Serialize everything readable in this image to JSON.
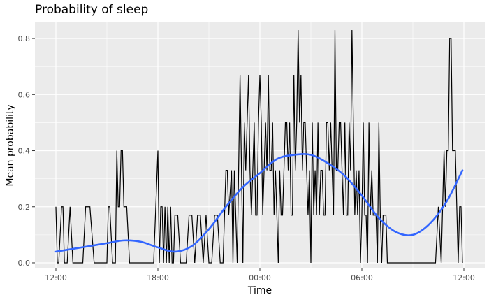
{
  "chart_data": {
    "type": "line",
    "title": "Probability of sleep",
    "xlabel": "Time",
    "ylabel": "Mean probability",
    "x_unit": "time of day, noon to next noon (24 h)",
    "xlim": [
      "12:00",
      "12:00"
    ],
    "ylim": [
      -0.02,
      0.86
    ],
    "x_ticks": [
      "12:00",
      "18:00",
      "00:00",
      "06:00",
      "12:00"
    ],
    "y_ticks": [
      "0.0",
      "0.2",
      "0.4",
      "0.6",
      "0.8"
    ],
    "grid": true,
    "background": "#ebebeb",
    "series": [
      {
        "style": "raw",
        "color": "#000000",
        "x": [
          "12:00",
          "12:05",
          "12:10",
          "12:20",
          "12:25",
          "12:30",
          "12:40",
          "12:50",
          "13:00",
          "13:10",
          "13:20",
          "13:30",
          "13:35",
          "13:45",
          "14:00",
          "14:15",
          "14:30",
          "14:45",
          "15:00",
          "15:05",
          "15:10",
          "15:20",
          "15:30",
          "15:35",
          "15:40",
          "15:45",
          "15:50",
          "15:55",
          "16:00",
          "16:10",
          "16:20",
          "16:30",
          "16:40",
          "17:00",
          "17:15",
          "17:30",
          "17:45",
          "18:00",
          "18:05",
          "18:10",
          "18:15",
          "18:20",
          "18:25",
          "18:30",
          "18:35",
          "18:40",
          "18:45",
          "18:50",
          "18:55",
          "19:00",
          "19:10",
          "19:20",
          "19:30",
          "19:40",
          "19:50",
          "20:00",
          "20:10",
          "20:20",
          "20:30",
          "20:40",
          "20:50",
          "21:00",
          "21:10",
          "21:20",
          "21:30",
          "21:40",
          "21:50",
          "22:00",
          "22:05",
          "22:10",
          "22:20",
          "22:25",
          "22:30",
          "22:40",
          "22:45",
          "22:50",
          "23:00",
          "23:05",
          "23:10",
          "23:15",
          "23:20",
          "23:25",
          "23:30",
          "23:35",
          "23:40",
          "23:45",
          "23:50",
          "23:55",
          "00:00",
          "00:05",
          "00:10",
          "00:15",
          "00:20",
          "00:25",
          "00:30",
          "00:35",
          "00:40",
          "00:45",
          "00:50",
          "00:55",
          "01:00",
          "01:05",
          "01:10",
          "01:15",
          "01:20",
          "01:25",
          "01:30",
          "01:35",
          "01:40",
          "01:45",
          "01:50",
          "01:55",
          "02:00",
          "02:05",
          "02:10",
          "02:15",
          "02:20",
          "02:25",
          "02:30",
          "02:35",
          "02:40",
          "02:45",
          "02:50",
          "02:55",
          "03:00",
          "03:05",
          "03:10",
          "03:15",
          "03:20",
          "03:25",
          "03:30",
          "03:35",
          "03:40",
          "03:45",
          "03:50",
          "03:55",
          "04:00",
          "04:05",
          "04:10",
          "04:15",
          "04:20",
          "04:25",
          "04:30",
          "04:35",
          "04:40",
          "04:45",
          "04:50",
          "04:55",
          "05:00",
          "05:05",
          "05:10",
          "05:15",
          "05:20",
          "05:25",
          "05:30",
          "05:35",
          "05:40",
          "05:45",
          "05:50",
          "05:55",
          "06:00",
          "06:05",
          "06:10",
          "06:15",
          "06:20",
          "06:25",
          "06:30",
          "06:35",
          "06:40",
          "06:45",
          "06:50",
          "06:55",
          "07:00",
          "07:05",
          "07:10",
          "07:15",
          "07:20",
          "07:25",
          "07:30",
          "07:35",
          "07:40",
          "07:45",
          "07:50",
          "07:55",
          "08:00",
          "08:10",
          "08:20",
          "08:30",
          "08:40",
          "08:50",
          "09:00",
          "09:10",
          "09:20",
          "09:30",
          "09:40",
          "09:50",
          "10:00",
          "10:10",
          "10:20",
          "10:30",
          "10:40",
          "10:50",
          "10:55",
          "11:00",
          "11:05",
          "11:10",
          "11:15",
          "11:20",
          "11:25",
          "11:30",
          "11:35",
          "11:40",
          "11:45",
          "11:50",
          "11:55"
        ],
        "values": [
          0.2,
          0,
          0,
          0.2,
          0.2,
          0,
          0,
          0.2,
          0,
          0,
          0,
          0,
          0,
          0.2,
          0.2,
          0,
          0,
          0,
          0,
          0.2,
          0.2,
          0,
          0,
          0.4,
          0.2,
          0.2,
          0.4,
          0.4,
          0.2,
          0.2,
          0,
          0,
          0,
          0,
          0,
          0,
          0,
          0.4,
          0,
          0.2,
          0.2,
          0,
          0.2,
          0,
          0.2,
          0,
          0.2,
          0,
          0,
          0.17,
          0.17,
          0,
          0,
          0,
          0.17,
          0.17,
          0,
          0.17,
          0.17,
          0,
          0.17,
          0,
          0,
          0.17,
          0.17,
          0,
          0,
          0.33,
          0.33,
          0.17,
          0.33,
          0,
          0.33,
          0,
          0.33,
          0.67,
          0,
          0.5,
          0.33,
          0.5,
          0.67,
          0.33,
          0.17,
          0.33,
          0.5,
          0.17,
          0.17,
          0.5,
          0.67,
          0.5,
          0.17,
          0.33,
          0.5,
          0.33,
          0.67,
          0.33,
          0.33,
          0.5,
          0.17,
          0.33,
          0.17,
          0,
          0.33,
          0.17,
          0.17,
          0.33,
          0.5,
          0.5,
          0.33,
          0.5,
          0.17,
          0.17,
          0.67,
          0.33,
          0.5,
          0.83,
          0.5,
          0.67,
          0.33,
          0.5,
          0.5,
          0.33,
          0.17,
          0.33,
          0,
          0.5,
          0.17,
          0.33,
          0.17,
          0.5,
          0.17,
          0.33,
          0.33,
          0.17,
          0.17,
          0.5,
          0.5,
          0.33,
          0.5,
          0.33,
          0.17,
          0.83,
          0.33,
          0.33,
          0.5,
          0.5,
          0.33,
          0.17,
          0.5,
          0.17,
          0.17,
          0.5,
          0.33,
          0.83,
          0.5,
          0.17,
          0.33,
          0.17,
          0.33,
          0,
          0.17,
          0.5,
          0.17,
          0.17,
          0,
          0.5,
          0.17,
          0.33,
          0.17,
          0.17,
          0.17,
          0,
          0.5,
          0.17,
          0,
          0.17,
          0.17,
          0.17,
          0,
          0,
          0,
          0,
          0,
          0,
          0,
          0,
          0,
          0,
          0,
          0,
          0,
          0,
          0,
          0,
          0,
          0,
          0,
          0,
          0,
          0.2,
          0,
          0.4,
          0.2,
          0.4,
          0.4,
          0.8,
          0.8,
          0.4,
          0.4,
          0.4,
          0.2,
          0,
          0.2,
          0.2,
          0
        ]
      },
      {
        "style": "smooth",
        "color": "#3366ff",
        "x": [
          "12:00",
          "13:00",
          "14:00",
          "15:00",
          "16:00",
          "17:00",
          "18:00",
          "19:00",
          "20:00",
          "21:00",
          "22:00",
          "23:00",
          "00:00",
          "01:00",
          "02:00",
          "03:00",
          "04:00",
          "05:00",
          "06:00",
          "07:00",
          "08:00",
          "09:00",
          "10:00",
          "11:00",
          "11:55"
        ],
        "values": [
          0.04,
          0.05,
          0.06,
          0.07,
          0.08,
          0.075,
          0.055,
          0.04,
          0.06,
          0.12,
          0.2,
          0.27,
          0.32,
          0.37,
          0.385,
          0.385,
          0.355,
          0.31,
          0.24,
          0.16,
          0.11,
          0.1,
          0.14,
          0.22,
          0.33
        ]
      }
    ]
  }
}
